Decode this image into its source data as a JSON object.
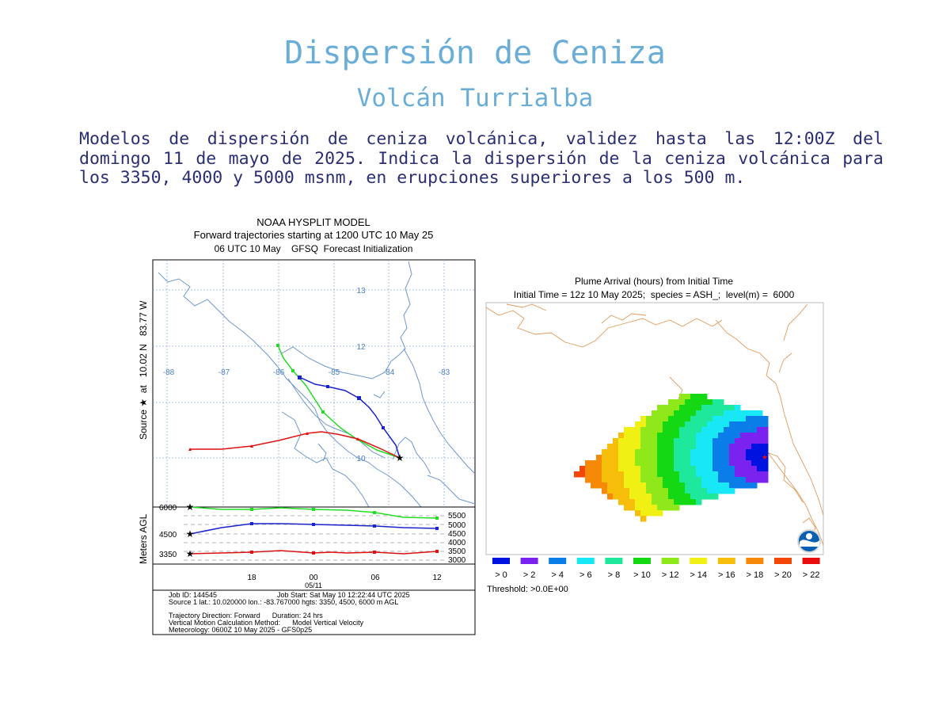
{
  "header": {
    "title": "Dispersión de Ceniza",
    "subtitle": "Volcán Turrialba",
    "description": "Modelos de dispersión de ceniza volcánica, validez hasta las 12:00Z del domingo 11 de mayo de 2025. Indica la dispersión de la ceniza volcánica para los 3350, 4000 y 5000 msnm, en erupciones superiores a los 500 m."
  },
  "left_figure": {
    "title_line1": "NOAA HYSPLIT MODEL",
    "title_line2": "Forward trajectories starting at 1200 UTC 10 May 25",
    "title_line3": "06 UTC 10 May    GFSQ  Forecast Initialization",
    "source_label": "Source ★  at   10.02 N   83.77 W",
    "map_lon_labels": [
      "-88",
      "-87",
      "-86",
      "-85",
      "-84",
      "-83"
    ],
    "map_lat_labels": [
      "13",
      "12",
      "10"
    ],
    "profile_ylabel": "Meters AGL",
    "profile_left_ticks": [
      "6000",
      "4500",
      "3350"
    ],
    "profile_right_ticks": [
      "5500",
      "5000",
      "4500",
      "4000",
      "3500",
      "3000"
    ],
    "profile_x_ticks": [
      "18",
      "00",
      "06",
      "12"
    ],
    "profile_date": "05/11",
    "info_line1a": "Job ID: 144545",
    "info_line1b": "Job Start: Sat May 10 12:22:44 UTC 2025",
    "info_line2": "Source 1 lat.: 10.020000  lon.: -83.767000  hgts: 3350, 4500, 6000 m AGL",
    "info_line3": "Trajectory Direction: Forward      Duration: 24 hrs",
    "info_line4": "Vertical Motion Calculation Method:      Model Vertical Velocity",
    "info_line5": "Meteorology: 0600Z 10 May 2025 - GFS0p25",
    "series_colors": {
      "high": "#22dd22",
      "mid": "#1a22cc",
      "low": "#dd1111"
    }
  },
  "right_figure": {
    "title_line1": "Plume Arrival (hours) from Initial Time",
    "title_line2": "Initial Time = 12z 10 May 2025;  species = ASH_;  level(m) =  6000",
    "legend_labels": [
      "> 0",
      "> 2",
      "> 4",
      "> 6",
      "> 8",
      "> 10",
      "> 12",
      "> 14",
      "> 16",
      "> 18",
      "> 20",
      "> 22"
    ],
    "legend_colors": [
      "#0012e0",
      "#7a22ee",
      "#0a7de8",
      "#18e8f6",
      "#1ee89c",
      "#14d814",
      "#8ee81a",
      "#f0f014",
      "#f6be0a",
      "#f68a08",
      "#f44608",
      "#e80c0c"
    ],
    "threshold": "Threshold: >0.0E+00",
    "logo": "noaa-logo"
  }
}
